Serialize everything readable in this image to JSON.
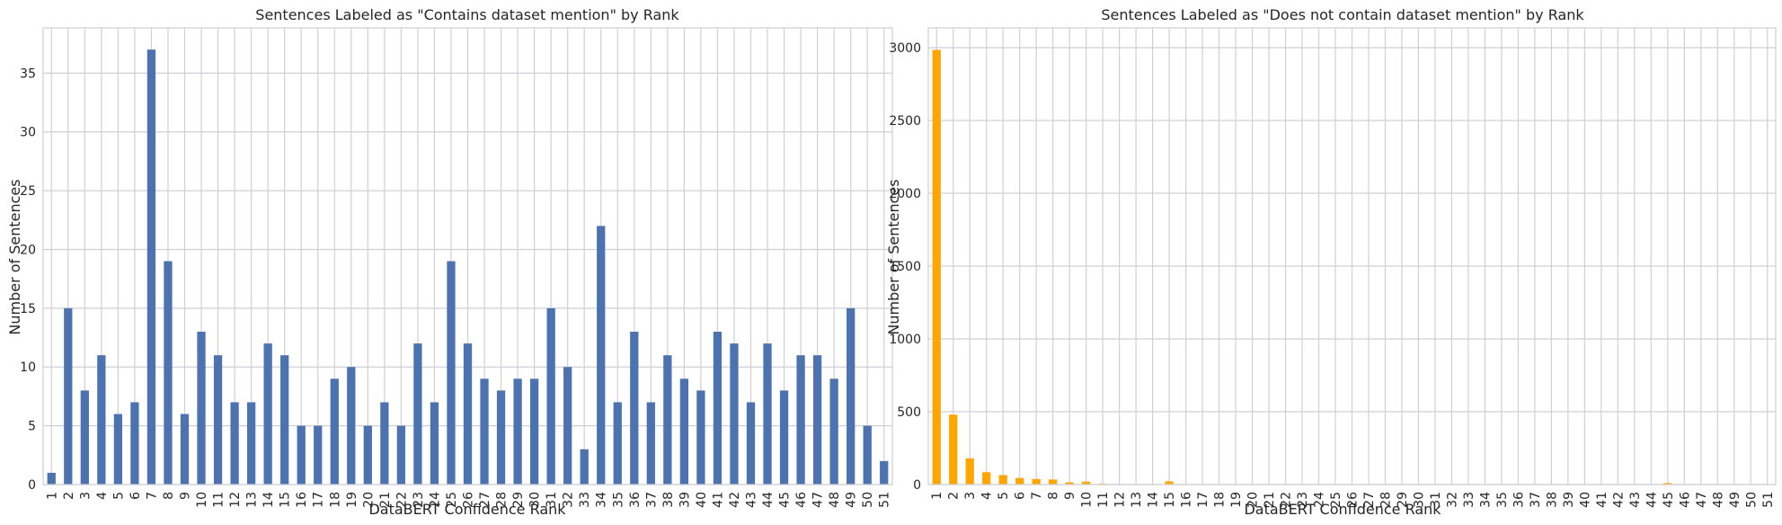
{
  "chart_data": [
    {
      "type": "bar",
      "title": "Sentences Labeled as \"Contains dataset mention\" by Rank",
      "xlabel": "DataBERT Confidence Rank",
      "ylabel": "Number of Sentences",
      "color": "#4c72b0",
      "ylim": [
        0,
        38.85
      ],
      "yticks": [
        0,
        5,
        10,
        15,
        20,
        25,
        30,
        35
      ],
      "grid": true,
      "categories": [
        "1",
        "2",
        "3",
        "4",
        "5",
        "6",
        "7",
        "8",
        "9",
        "10",
        "11",
        "12",
        "13",
        "14",
        "15",
        "16",
        "17",
        "18",
        "19",
        "20",
        "21",
        "22",
        "23",
        "24",
        "25",
        "26",
        "27",
        "28",
        "29",
        "30",
        "31",
        "32",
        "33",
        "34",
        "35",
        "36",
        "37",
        "38",
        "39",
        "40",
        "41",
        "42",
        "43",
        "44",
        "45",
        "46",
        "47",
        "48",
        "49",
        "50",
        "51"
      ],
      "values": [
        1,
        15,
        8,
        11,
        6,
        7,
        37,
        19,
        6,
        13,
        11,
        7,
        7,
        12,
        11,
        5,
        5,
        9,
        10,
        5,
        7,
        5,
        12,
        7,
        19,
        12,
        9,
        8,
        9,
        9,
        15,
        10,
        3,
        22,
        7,
        13,
        7,
        11,
        9,
        8,
        13,
        12,
        7,
        12,
        8,
        11,
        11,
        9,
        15,
        5,
        2
      ]
    },
    {
      "type": "bar",
      "title": "Sentences Labeled as \"Does not contain dataset mention\" by Rank",
      "xlabel": "DataBERT Confidence Rank",
      "ylabel": "Number of Sentences",
      "color": "#ffa500",
      "ylim": [
        0,
        3136
      ],
      "yticks": [
        0,
        500,
        1000,
        1500,
        2000,
        2500,
        3000
      ],
      "grid": true,
      "categories": [
        "1",
        "2",
        "3",
        "4",
        "5",
        "6",
        "7",
        "8",
        "9",
        "10",
        "11",
        "12",
        "13",
        "14",
        "15",
        "16",
        "17",
        "18",
        "19",
        "20",
        "21",
        "22",
        "23",
        "24",
        "25",
        "26",
        "27",
        "28",
        "29",
        "30",
        "31",
        "32",
        "33",
        "34",
        "35",
        "36",
        "37",
        "38",
        "39",
        "40",
        "41",
        "42",
        "43",
        "44",
        "45",
        "46",
        "47",
        "48",
        "49",
        "50",
        "51"
      ],
      "values": [
        2985,
        480,
        180,
        85,
        65,
        45,
        38,
        35,
        15,
        20,
        6,
        4,
        3,
        3,
        22,
        2,
        2,
        1,
        1,
        1,
        1,
        1,
        1,
        1,
        1,
        1,
        1,
        1,
        1,
        1,
        1,
        1,
        1,
        1,
        1,
        1,
        1,
        1,
        1,
        1,
        1,
        1,
        1,
        1,
        10,
        1,
        1,
        1,
        1,
        1,
        1
      ]
    }
  ]
}
